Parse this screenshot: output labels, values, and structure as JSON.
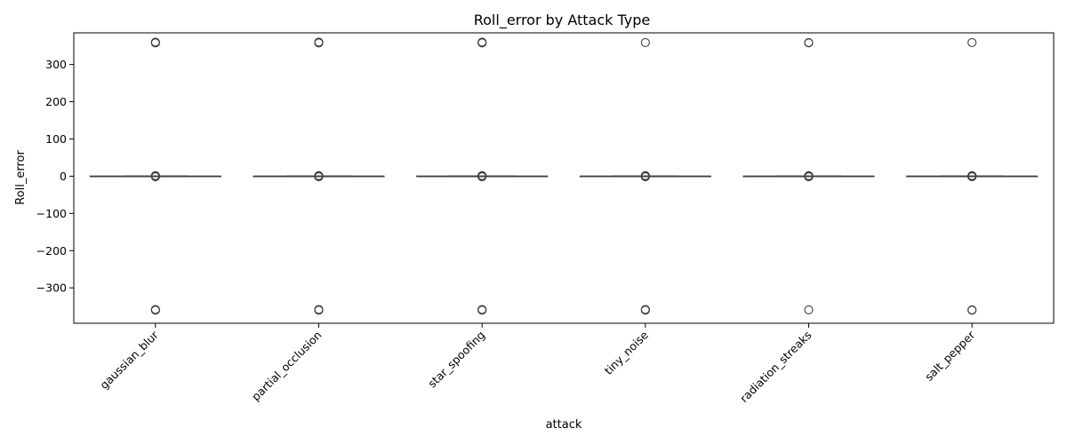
{
  "chart_data": {
    "type": "box",
    "title": "Roll_error by Attack Type",
    "xlabel": "attack",
    "ylabel": "Roll_error",
    "ylim": [
      -395,
      385
    ],
    "yticks": [
      300,
      200,
      100,
      0,
      -100,
      -200,
      -300
    ],
    "ytick_labels": [
      "300",
      "200",
      "100",
      "0",
      "−100",
      "−200",
      "−300"
    ],
    "grid": false,
    "categories": [
      "gaussian_blur",
      "partial_occlusion",
      "star_spoofing",
      "tiny_noise",
      "radiation_streaks",
      "salt_pepper"
    ],
    "boxes": [
      {
        "category": "gaussian_blur",
        "q1": 0,
        "median": 0,
        "q3": 0,
        "whisker_low": 0,
        "whisker_high": 0,
        "outliers": [
          360,
          359,
          358,
          1.5,
          1,
          0.5,
          -0.5,
          -1,
          -1.5,
          -358,
          -359,
          -360
        ]
      },
      {
        "category": "partial_occlusion",
        "q1": 0,
        "median": 0,
        "q3": 0,
        "whisker_low": 0,
        "whisker_high": 0,
        "outliers": [
          360,
          359,
          358,
          1.5,
          1,
          0.5,
          -0.5,
          -1,
          -1.5,
          -358,
          -359,
          -360
        ]
      },
      {
        "category": "star_spoofing",
        "q1": 0,
        "median": 0,
        "q3": 0,
        "whisker_low": 0,
        "whisker_high": 0,
        "outliers": [
          360,
          359,
          358,
          1.5,
          1,
          0.5,
          -0.5,
          -1,
          -1.5,
          -358,
          -359,
          -360
        ]
      },
      {
        "category": "tiny_noise",
        "q1": 0,
        "median": 0,
        "q3": 0,
        "whisker_low": 0,
        "whisker_high": 0,
        "outliers": [
          359,
          1.5,
          1,
          0.5,
          -0.5,
          -1,
          -1.5,
          -358,
          -359,
          -360
        ]
      },
      {
        "category": "radiation_streaks",
        "q1": 0,
        "median": 0,
        "q3": 0,
        "whisker_low": 0,
        "whisker_high": 0,
        "outliers": [
          359,
          358,
          1.5,
          1,
          0.5,
          -0.5,
          -1,
          -1.5,
          -359
        ]
      },
      {
        "category": "salt_pepper",
        "q1": 0,
        "median": 0,
        "q3": 0,
        "whisker_low": 0,
        "whisker_high": 0,
        "outliers": [
          359,
          1.5,
          1,
          0.5,
          -0.5,
          -1,
          -1.5,
          -359,
          -360
        ]
      }
    ],
    "colors": {
      "box_line": "#3f3f3f",
      "axis": "#000000",
      "outlier_edge": "#3f3f3f"
    }
  }
}
